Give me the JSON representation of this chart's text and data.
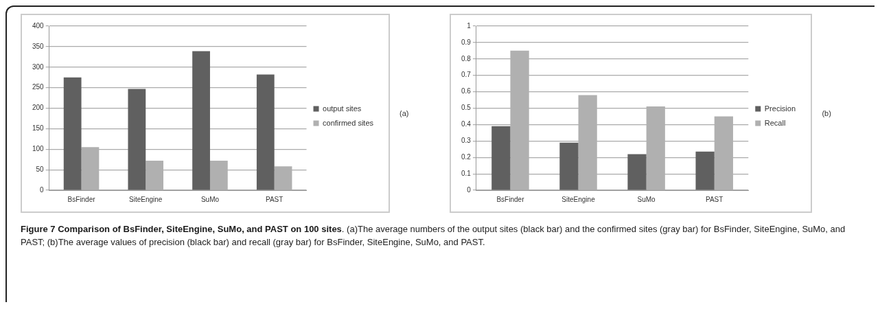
{
  "chart_data": [
    {
      "type": "bar",
      "categories": [
        "BsFinder",
        "SiteEngine",
        "SuMo",
        "PAST"
      ],
      "series": [
        {
          "name": "output sites",
          "color": "#606060",
          "values": [
            275,
            247,
            339,
            282
          ]
        },
        {
          "name": "confirmed sites",
          "color": "#b0b0b0",
          "values": [
            105,
            72,
            72,
            58
          ]
        }
      ],
      "ylim": [
        0,
        400
      ],
      "yticks": [
        0,
        50,
        100,
        150,
        200,
        250,
        300,
        350,
        400
      ],
      "grid": "y",
      "legend": "right",
      "annotations": [
        "(a)",
        "Figure 7 Comparison of BsFinder, SiteEngine, SuMo, and PAST on 100 sites",
        ". (a)The average numbers of the output sites (black bar) and the confirmed sites (gray bar) for BsFinder, SiteEngine, SuMo, and PAST; (b)The average values of precision (black bar) and recall (gray bar) for BsFinder, SiteEngine, SuMo, and PAST."
      ]
    },
    {
      "type": "bar",
      "categories": [
        "BsFinder",
        "SiteEngine",
        "SuMo",
        "PAST"
      ],
      "series": [
        {
          "name": "Precision",
          "color": "#606060",
          "values": [
            0.39,
            0.29,
            0.22,
            0.235
          ]
        },
        {
          "name": "Recall",
          "color": "#b0b0b0",
          "values": [
            0.85,
            0.58,
            0.51,
            0.45
          ]
        }
      ],
      "ylim": [
        0,
        1
      ],
      "yticks": [
        0,
        0.1,
        0.2,
        0.3,
        0.4,
        0.5,
        0.6,
        0.7,
        0.8,
        0.9,
        1
      ],
      "grid": "y",
      "legend": "right",
      "annotations": [
        "(b)"
      ]
    }
  ]
}
